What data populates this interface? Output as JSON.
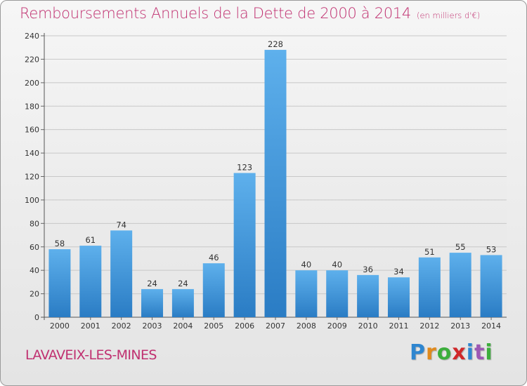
{
  "title": "Remboursements Annuels de la Dette de 2000 à 2014",
  "unit": "(en milliers d'€)",
  "commune": "LAVAVEIX-LES-MINES",
  "brand": [
    "P",
    "r",
    "o",
    "x",
    "i",
    "t",
    "i"
  ],
  "colors": {
    "title": "#c03070",
    "bar_top": "#5eb0ec",
    "bar_bottom": "#2a7cc4"
  },
  "chart_data": {
    "type": "bar",
    "title": "Remboursements Annuels de la Dette de 2000 à 2014",
    "categories": [
      "2000",
      "2001",
      "2002",
      "2003",
      "2004",
      "2005",
      "2006",
      "2007",
      "2008",
      "2009",
      "2010",
      "2011",
      "2012",
      "2013",
      "2014"
    ],
    "values": [
      58,
      61,
      74,
      24,
      24,
      46,
      123,
      228,
      40,
      40,
      36,
      34,
      51,
      55,
      53
    ],
    "ylim": [
      0,
      240
    ],
    "yticks": [
      0,
      20,
      40,
      60,
      80,
      100,
      120,
      140,
      160,
      180,
      200,
      220,
      240
    ],
    "grid": true,
    "legend": "none"
  }
}
